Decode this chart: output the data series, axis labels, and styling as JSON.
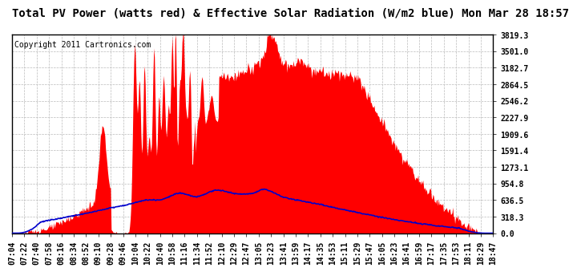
{
  "title": "Total PV Power (watts red) & Effective Solar Radiation (W/m2 blue) Mon Mar 28 18:57",
  "copyright_text": "Copyright 2011 Cartronics.com",
  "background_color": "#ffffff",
  "plot_bg_color": "#ffffff",
  "grid_color": "#bbbbbb",
  "pv_color": "#ff0000",
  "solar_color": "#0000cc",
  "ymax": 3819.3,
  "ymin": 0.0,
  "yticks": [
    0.0,
    318.3,
    636.5,
    954.8,
    1273.1,
    1591.4,
    1909.6,
    2227.9,
    2546.2,
    2864.5,
    3182.7,
    3501.0,
    3819.3
  ],
  "x_labels": [
    "07:04",
    "07:22",
    "07:40",
    "07:58",
    "08:16",
    "08:34",
    "08:52",
    "09:10",
    "09:28",
    "09:46",
    "10:04",
    "10:22",
    "10:40",
    "10:58",
    "11:16",
    "11:34",
    "11:52",
    "12:10",
    "12:29",
    "12:47",
    "13:05",
    "13:23",
    "13:41",
    "13:59",
    "14:17",
    "14:35",
    "14:53",
    "15:11",
    "15:29",
    "15:47",
    "16:05",
    "16:23",
    "16:41",
    "16:59",
    "17:17",
    "17:35",
    "17:53",
    "18:11",
    "18:29",
    "18:47"
  ],
  "title_fontsize": 10,
  "tick_fontsize": 7,
  "copyright_fontsize": 7
}
